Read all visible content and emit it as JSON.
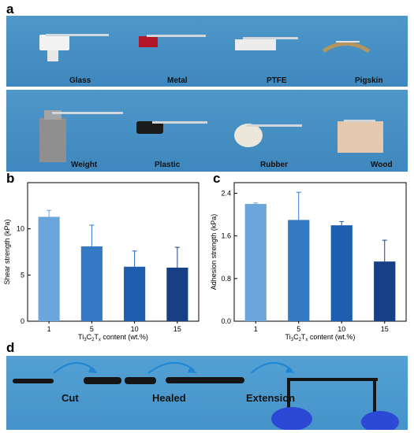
{
  "panels": {
    "a": {
      "letter": "a",
      "row1": [
        "Glass",
        "Metal",
        "PTFE",
        "Pigskin"
      ],
      "row2": [
        "Weight",
        "Plastic",
        "Rubber",
        "Wood"
      ]
    },
    "b": {
      "letter": "b"
    },
    "c": {
      "letter": "c"
    },
    "d": {
      "letter": "d",
      "labels": {
        "cut": "Cut",
        "healed": "Healed",
        "extension": "Extension"
      }
    }
  },
  "colors": {
    "bar1": "#6aa6dc",
    "bar2": "#3479c4",
    "bar3": "#1d5fae",
    "bar4": "#163f86",
    "photo_bg": "#4a92c6"
  },
  "chart_data": [
    {
      "type": "bar",
      "panel": "b",
      "categories": [
        "1",
        "5",
        "10",
        "15"
      ],
      "values": [
        11.3,
        8.1,
        5.9,
        5.8
      ],
      "errors": [
        0.7,
        2.3,
        1.7,
        2.2
      ],
      "xlabel": "Ti3C2Tx content (wt.%)",
      "ylabel": "Shear strength (kPa)",
      "ylim": [
        0,
        15
      ],
      "yticks": [
        "0",
        "5",
        "10"
      ],
      "ytick_values": [
        0,
        5,
        10
      ]
    },
    {
      "type": "bar",
      "panel": "c",
      "categories": [
        "1",
        "5",
        "10",
        "15"
      ],
      "values": [
        2.2,
        1.9,
        1.8,
        1.12
      ],
      "errors": [
        0.02,
        0.52,
        0.07,
        0.4
      ],
      "xlabel": "Ti3C2Tx content (wt.%)",
      "ylabel": "Adhesion strength (kPa)",
      "ylim": [
        0,
        2.6
      ],
      "yticks": [
        "0.0",
        "0.8",
        "1.6",
        "2.4"
      ],
      "ytick_values": [
        0,
        0.8,
        1.6,
        2.4
      ]
    }
  ]
}
